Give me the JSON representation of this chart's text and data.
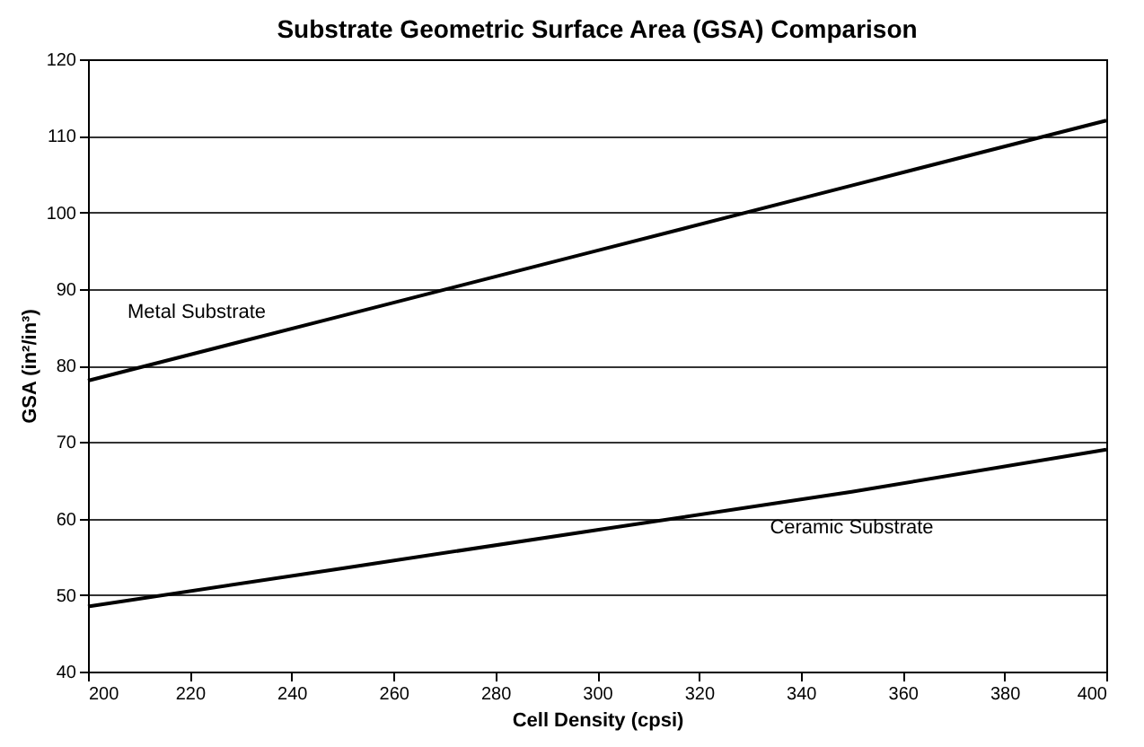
{
  "chart_data": {
    "type": "line",
    "title": "Substrate Geometric Surface Area (GSA) Comparison",
    "xlabel": "Cell Density (cpsi)",
    "ylabel": "GSA (in²/in³)",
    "x": [
      200,
      250,
      300,
      350,
      400
    ],
    "series": [
      {
        "name": "Metal Substrate",
        "color": "#000000",
        "values": [
          78,
          86.5,
          95,
          103.5,
          112
        ]
      },
      {
        "name": "Ceramic Substrate",
        "color": "#000000",
        "values": [
          48.5,
          53.5,
          58.5,
          63.5,
          69
        ]
      }
    ],
    "xlim": [
      200,
      400
    ],
    "xticks": [
      200,
      220,
      240,
      260,
      280,
      300,
      320,
      340,
      360,
      380,
      400
    ],
    "ylim": [
      40,
      120
    ],
    "yticks": [
      40,
      50,
      60,
      70,
      80,
      90,
      100,
      110,
      120
    ],
    "grid": "y",
    "legend": false,
    "marker": "none",
    "line_style": "solid"
  }
}
